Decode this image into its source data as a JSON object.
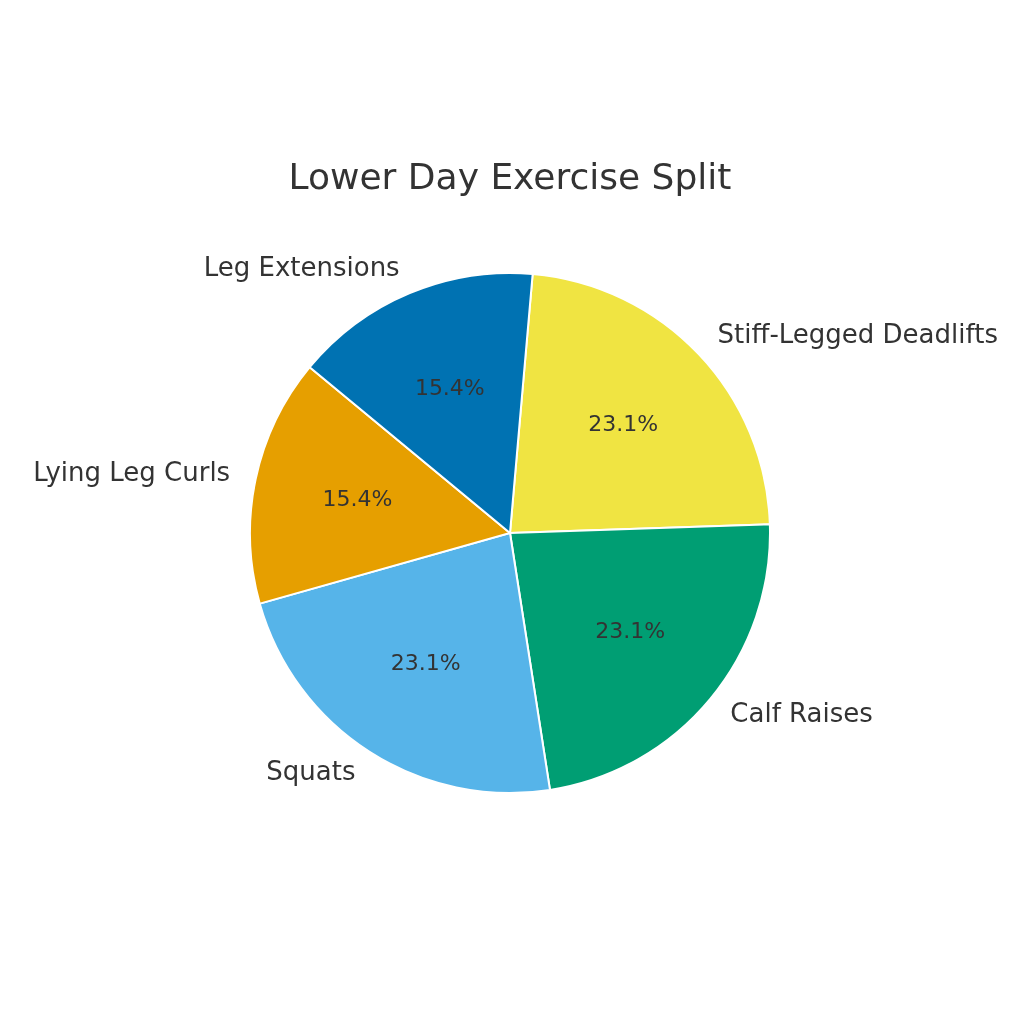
{
  "chart_data": {
    "type": "pie",
    "title": "Lower Day Exercise Split",
    "categories": [
      "Stiff-Legged Deadlifts",
      "Calf Raises",
      "Squats",
      "Lying Leg Curls",
      "Leg Extensions"
    ],
    "values": [
      23.1,
      23.1,
      23.1,
      15.4,
      15.4
    ],
    "value_labels": [
      "23.1%",
      "23.1%",
      "23.1%",
      "15.4%",
      "15.4%"
    ],
    "colors": [
      "#f0e442",
      "#009e73",
      "#56b4e9",
      "#e69f00",
      "#0072b2"
    ],
    "legend": false
  }
}
